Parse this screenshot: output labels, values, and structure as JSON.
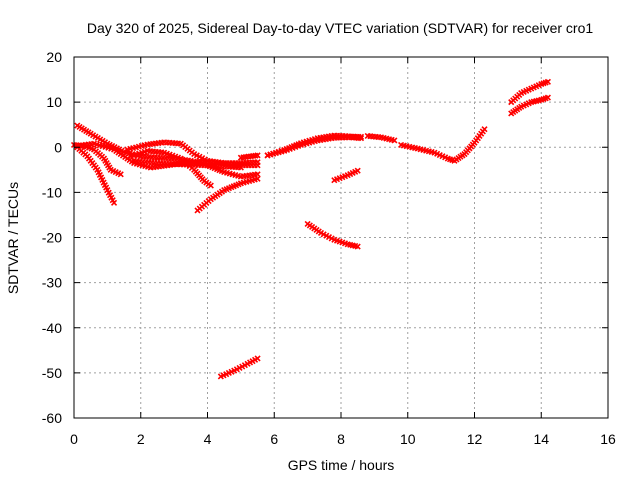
{
  "chart_data": {
    "type": "scatter",
    "title": "Day 320 of 2025, Sidereal Day-to-day VTEC variation (SDTVAR) for receiver cro1",
    "xlabel": "GPS time / hours",
    "ylabel": "SDTVAR / TECUs",
    "xlim": [
      0,
      16
    ],
    "ylim": [
      -60,
      20
    ],
    "xticks": [
      0,
      2,
      4,
      6,
      8,
      10,
      12,
      14,
      16
    ],
    "yticks": [
      -60,
      -50,
      -40,
      -30,
      -20,
      -10,
      0,
      10,
      20
    ],
    "grid": true,
    "legend": "none",
    "series_color": "#ff0000",
    "series": [
      {
        "points": [
          [
            0.0,
            0.5
          ],
          [
            0.3,
            0.3
          ],
          [
            0.6,
            -0.5
          ],
          [
            0.9,
            -2.5
          ],
          [
            1.1,
            -5.0
          ],
          [
            1.4,
            -6.0
          ]
        ]
      },
      {
        "points": [
          [
            0.1,
            4.8
          ],
          [
            0.5,
            3.0
          ],
          [
            1.0,
            0.8
          ],
          [
            1.5,
            -1.0
          ],
          [
            2.0,
            -2.0
          ],
          [
            2.5,
            -2.3
          ],
          [
            3.0,
            -2.5
          ],
          [
            3.5,
            -3.0
          ],
          [
            4.0,
            -4.0
          ],
          [
            4.5,
            -5.5
          ],
          [
            5.0,
            -6.5
          ],
          [
            5.5,
            -6.0
          ]
        ]
      },
      {
        "points": [
          [
            0.1,
            0.3
          ],
          [
            0.6,
            0.8
          ],
          [
            1.2,
            -0.5
          ],
          [
            1.8,
            -3.5
          ],
          [
            2.3,
            -4.5
          ],
          [
            2.8,
            -4.0
          ],
          [
            3.3,
            -3.5
          ],
          [
            3.8,
            -3.2
          ],
          [
            4.3,
            -3.5
          ],
          [
            4.8,
            -4.0
          ],
          [
            5.5,
            -4.0
          ]
        ]
      },
      {
        "points": [
          [
            0.1,
            0.0
          ],
          [
            0.4,
            -2.0
          ],
          [
            0.7,
            -5.0
          ],
          [
            1.0,
            -9.5
          ],
          [
            1.2,
            -12.3
          ]
        ]
      },
      {
        "points": [
          [
            1.6,
            -0.5
          ],
          [
            2.2,
            0.6
          ],
          [
            2.7,
            1.1
          ],
          [
            3.2,
            0.8
          ],
          [
            3.6,
            -1.5
          ],
          [
            4.0,
            -3.0
          ],
          [
            4.5,
            -3.5
          ],
          [
            5.0,
            -3.5
          ],
          [
            5.5,
            -3.3
          ]
        ]
      },
      {
        "points": [
          [
            1.7,
            -2.0
          ],
          [
            2.2,
            -0.8
          ],
          [
            2.7,
            -1.2
          ],
          [
            3.2,
            -2.5
          ],
          [
            3.6,
            -5.0
          ],
          [
            3.9,
            -7.5
          ],
          [
            4.1,
            -8.5
          ]
        ]
      },
      {
        "points": [
          [
            1.8,
            -3.0
          ],
          [
            2.5,
            -3.5
          ],
          [
            3.2,
            -3.8
          ],
          [
            3.9,
            -4.0
          ],
          [
            4.5,
            -4.2
          ],
          [
            5.0,
            -4.5
          ]
        ]
      },
      {
        "points": [
          [
            3.7,
            -14.0
          ],
          [
            4.1,
            -11.5
          ],
          [
            4.5,
            -9.5
          ],
          [
            5.0,
            -8.0
          ],
          [
            5.5,
            -7.0
          ]
        ]
      },
      {
        "points": [
          [
            5.0,
            -2.3
          ],
          [
            5.3,
            -2.0
          ],
          [
            5.5,
            -1.8
          ]
        ]
      },
      {
        "points": [
          [
            4.4,
            -50.8
          ],
          [
            4.8,
            -49.5
          ],
          [
            5.2,
            -48.0
          ],
          [
            5.5,
            -46.8
          ]
        ]
      },
      {
        "points": [
          [
            5.8,
            -1.8
          ],
          [
            6.3,
            -0.8
          ],
          [
            6.8,
            0.5
          ],
          [
            7.3,
            1.5
          ],
          [
            7.8,
            2.1
          ],
          [
            8.3,
            2.2
          ],
          [
            8.6,
            2.0
          ]
        ]
      },
      {
        "points": [
          [
            5.8,
            -1.8
          ],
          [
            6.3,
            -0.6
          ],
          [
            6.8,
            0.9
          ],
          [
            7.3,
            2.0
          ],
          [
            7.8,
            2.6
          ],
          [
            8.3,
            2.4
          ],
          [
            8.6,
            2.3
          ]
        ]
      },
      {
        "points": [
          [
            8.8,
            2.5
          ],
          [
            9.2,
            2.2
          ],
          [
            9.6,
            1.5
          ]
        ]
      },
      {
        "points": [
          [
            7.0,
            -17.0
          ],
          [
            7.4,
            -19.0
          ],
          [
            7.8,
            -20.5
          ],
          [
            8.2,
            -21.5
          ],
          [
            8.5,
            -22.0
          ]
        ]
      },
      {
        "points": [
          [
            7.8,
            -7.3
          ],
          [
            8.2,
            -6.2
          ],
          [
            8.5,
            -5.2
          ]
        ]
      },
      {
        "points": [
          [
            9.8,
            0.5
          ],
          [
            10.3,
            -0.3
          ],
          [
            10.8,
            -1.2
          ],
          [
            11.2,
            -2.5
          ],
          [
            11.4,
            -3.0
          ],
          [
            11.7,
            -1.5
          ],
          [
            12.0,
            1.0
          ],
          [
            12.3,
            4.0
          ]
        ]
      },
      {
        "points": [
          [
            13.1,
            7.5
          ],
          [
            13.4,
            9.0
          ],
          [
            13.7,
            10.0
          ],
          [
            14.0,
            10.5
          ],
          [
            14.2,
            11.0
          ]
        ]
      },
      {
        "points": [
          [
            13.1,
            10.0
          ],
          [
            13.4,
            12.0
          ],
          [
            13.7,
            13.0
          ],
          [
            14.0,
            14.0
          ],
          [
            14.2,
            14.5
          ]
        ]
      }
    ]
  }
}
